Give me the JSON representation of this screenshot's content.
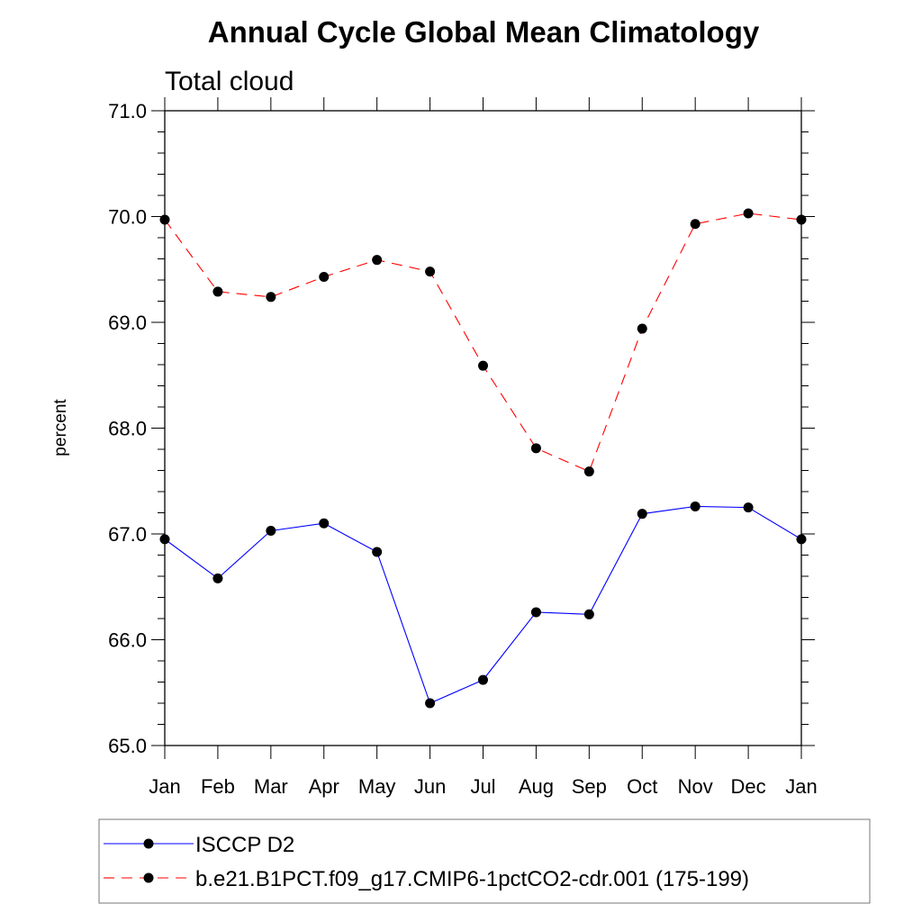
{
  "chart_data": {
    "type": "line",
    "title": "Annual Cycle Global Mean Climatology",
    "subtitle": "Total cloud",
    "xlabel": "",
    "ylabel": "percent",
    "ylim": [
      65.0,
      71.0
    ],
    "yticks": [
      "65.0",
      "66.0",
      "67.0",
      "68.0",
      "69.0",
      "70.0",
      "71.0"
    ],
    "categories": [
      "Jan",
      "Feb",
      "Mar",
      "Apr",
      "May",
      "Jun",
      "Jul",
      "Aug",
      "Sep",
      "Oct",
      "Nov",
      "Dec",
      "Jan"
    ],
    "grid": false,
    "legend_position": "bottom",
    "series": [
      {
        "name": "ISCCP D2",
        "color": "#0000ff",
        "dash": "solid",
        "marker": "filled-circle",
        "values": [
          66.95,
          66.58,
          67.03,
          67.1,
          66.83,
          65.4,
          65.62,
          66.26,
          66.24,
          67.19,
          67.26,
          67.25,
          66.95
        ]
      },
      {
        "name": "b.e21.B1PCT.f09_g17.CMIP6-1pctCO2-cdr.001 (175-199)",
        "color": "#ff0000",
        "dash": "dashed",
        "marker": "filled-circle",
        "values": [
          69.97,
          69.29,
          69.24,
          69.43,
          69.59,
          69.48,
          68.59,
          67.81,
          67.59,
          68.94,
          69.93,
          70.03,
          69.97
        ]
      }
    ]
  }
}
